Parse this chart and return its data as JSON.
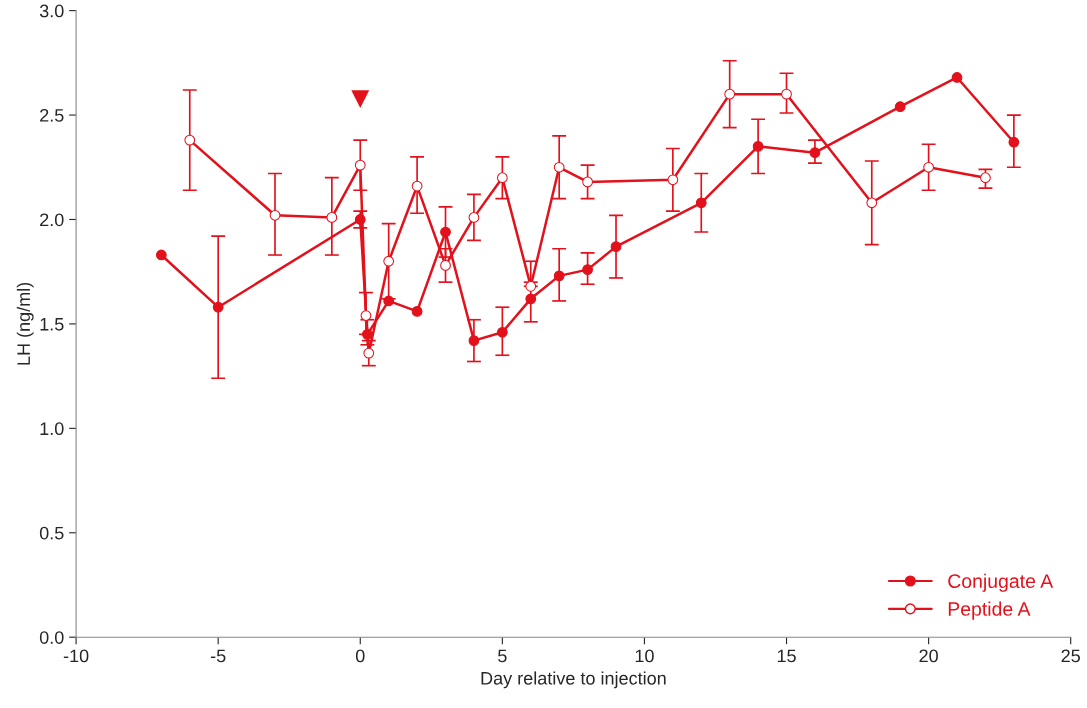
{
  "chart_data": {
    "type": "line",
    "xlabel": "Day relative to injection",
    "ylabel": "LH (ng/ml)",
    "xlim": [
      -10,
      25
    ],
    "xticks": [
      -10,
      -5,
      0,
      5,
      10,
      15,
      20,
      25
    ],
    "ylim": [
      0,
      3
    ],
    "yticks": [
      {
        "value": 0,
        "label": "0.0"
      },
      {
        "value": 0.5,
        "label": "0.5"
      },
      {
        "value": 1,
        "label": "1.0"
      },
      {
        "value": 1.5,
        "label": "1.5"
      },
      {
        "value": 2,
        "label": "2.0"
      },
      {
        "value": 2.5,
        "label": "2.5"
      },
      {
        "value": 3,
        "label": "3.0"
      }
    ],
    "grid": false,
    "legend": "bottom right",
    "marker": "circle",
    "line_style": "solid",
    "annotations": [
      "▼"
    ],
    "series": [
      {
        "name": "Conjugate A",
        "color": "#e3111b",
        "x": [
          -7,
          -5,
          0,
          0.25,
          1,
          2,
          3,
          4,
          5,
          6,
          7,
          8,
          9,
          12,
          14,
          16,
          19,
          21,
          23
        ],
        "values": [
          1.83,
          1.58,
          2.0,
          1.45,
          1.61,
          1.56,
          1.94,
          1.42,
          1.46,
          1.62,
          1.73,
          1.76,
          1.87,
          2.08,
          2.35,
          2.32,
          2.54,
          2.68,
          2.37
        ],
        "errors": [
          null,
          [
            1.24,
            1.92
          ],
          [
            1.96,
            2.04
          ],
          [
            1.4,
            1.52
          ],
          null,
          null,
          [
            1.82,
            2.06
          ],
          [
            1.32,
            1.52
          ],
          [
            1.35,
            1.58
          ],
          [
            1.51,
            1.7
          ],
          [
            1.61,
            1.86
          ],
          [
            1.69,
            1.84
          ],
          [
            1.72,
            2.02
          ],
          [
            1.94,
            2.22
          ],
          [
            2.22,
            2.48
          ],
          [
            2.27,
            2.38
          ],
          null,
          null,
          [
            2.25,
            2.5
          ]
        ]
      },
      {
        "name": "Peptide A",
        "color": "#e3111b",
        "x": [
          -6,
          -3,
          -1,
          0,
          0.2,
          0.3,
          1,
          2,
          3,
          4,
          5,
          6,
          7,
          8,
          11,
          13,
          15,
          18,
          20,
          22
        ],
        "values": [
          2.38,
          2.02,
          2.01,
          2.26,
          1.54,
          1.36,
          1.8,
          2.16,
          1.78,
          2.01,
          2.2,
          1.68,
          2.25,
          2.18,
          2.19,
          2.6,
          2.6,
          2.08,
          2.25,
          2.2
        ],
        "errors": [
          [
            2.14,
            2.62
          ],
          [
            1.83,
            2.22
          ],
          [
            1.83,
            2.2
          ],
          [
            2.14,
            2.38
          ],
          [
            1.45,
            1.65
          ],
          [
            1.3,
            1.42
          ],
          [
            1.62,
            1.98
          ],
          [
            2.03,
            2.3
          ],
          [
            1.7,
            1.86
          ],
          [
            1.9,
            2.12
          ],
          [
            2.1,
            2.3
          ],
          [
            1.68,
            1.8
          ],
          [
            2.1,
            2.4
          ],
          [
            2.1,
            2.26
          ],
          [
            2.04,
            2.34
          ],
          [
            2.44,
            2.76
          ],
          [
            2.51,
            2.7
          ],
          [
            1.88,
            2.28
          ],
          [
            2.14,
            2.36
          ],
          [
            2.15,
            2.24
          ]
        ]
      }
    ]
  }
}
